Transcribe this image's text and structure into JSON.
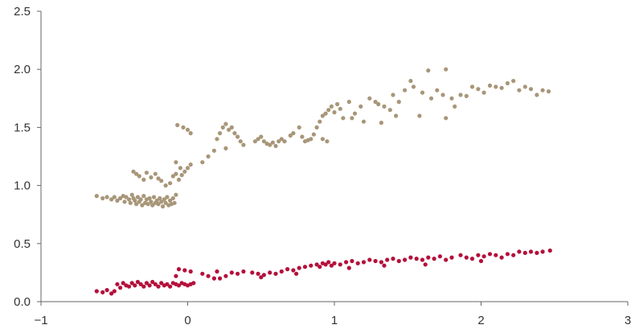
{
  "chart_data": {
    "type": "scatter",
    "title": "",
    "xlabel": "",
    "ylabel": "",
    "xlim": [
      -1,
      3
    ],
    "ylim": [
      0,
      2.5
    ],
    "x_ticks": [
      -1,
      0,
      1,
      2,
      3
    ],
    "x_tick_labels": [
      "−1",
      "0",
      "1",
      "2",
      "3"
    ],
    "y_ticks": [
      0,
      0.5,
      1,
      1.5,
      2,
      2.5
    ],
    "y_tick_labels": [
      "0.0",
      "0.5",
      "1.0",
      "1.5",
      "2.0",
      "2.5"
    ],
    "grid": false,
    "legend": "none",
    "series": [
      {
        "color": "#a89679",
        "points": [
          [
            -0.62,
            0.91
          ],
          [
            -0.58,
            0.89
          ],
          [
            -0.55,
            0.9
          ],
          [
            -0.52,
            0.88
          ],
          [
            -0.5,
            0.9
          ],
          [
            -0.48,
            0.87
          ],
          [
            -0.46,
            0.89
          ],
          [
            -0.44,
            0.91
          ],
          [
            -0.43,
            0.86
          ],
          [
            -0.42,
            0.9
          ],
          [
            -0.4,
            0.88
          ],
          [
            -0.39,
            0.85
          ],
          [
            -0.38,
            0.92
          ],
          [
            -0.37,
            0.89
          ],
          [
            -0.36,
            0.87
          ],
          [
            -0.35,
            0.84
          ],
          [
            -0.34,
            0.9
          ],
          [
            -0.33,
            0.86
          ],
          [
            -0.32,
            0.88
          ],
          [
            -0.31,
            0.83
          ],
          [
            -0.3,
            0.91
          ],
          [
            -0.29,
            0.85
          ],
          [
            -0.28,
            0.88
          ],
          [
            -0.27,
            0.84
          ],
          [
            -0.26,
            0.89
          ],
          [
            -0.25,
            0.86
          ],
          [
            -0.24,
            0.83
          ],
          [
            -0.23,
            0.9
          ],
          [
            -0.22,
            0.85
          ],
          [
            -0.21,
            0.87
          ],
          [
            -0.2,
            0.84
          ],
          [
            -0.19,
            0.89
          ],
          [
            -0.18,
            0.86
          ],
          [
            -0.17,
            0.82
          ],
          [
            -0.16,
            0.88
          ],
          [
            -0.15,
            0.85
          ],
          [
            -0.14,
            0.9
          ],
          [
            -0.13,
            0.83
          ],
          [
            -0.12,
            0.87
          ],
          [
            -0.11,
            0.84
          ],
          [
            -0.1,
            0.89
          ],
          [
            -0.09,
            0.85
          ],
          [
            -0.08,
            0.92
          ],
          [
            -0.35,
            1.1
          ],
          [
            -0.37,
            1.12
          ],
          [
            -0.33,
            1.08
          ],
          [
            -0.3,
            1.05
          ],
          [
            -0.28,
            1.11
          ],
          [
            -0.25,
            1.07
          ],
          [
            -0.22,
            1.1
          ],
          [
            -0.2,
            1.06
          ],
          [
            -0.18,
            1.04
          ],
          [
            -0.15,
            1.0
          ],
          [
            -0.12,
            1.02
          ],
          [
            -0.1,
            1.08
          ],
          [
            -0.08,
            1.1
          ],
          [
            -0.06,
            1.05
          ],
          [
            -0.04,
            1.09
          ],
          [
            -0.02,
            1.12
          ],
          [
            0.0,
            1.15
          ],
          [
            0.02,
            1.18
          ],
          [
            -0.05,
            1.15
          ],
          [
            -0.08,
            1.2
          ],
          [
            -0.07,
            1.52
          ],
          [
            -0.03,
            1.5
          ],
          [
            0.0,
            1.48
          ],
          [
            0.02,
            1.45
          ],
          [
            0.1,
            1.2
          ],
          [
            0.14,
            1.25
          ],
          [
            0.18,
            1.3
          ],
          [
            0.2,
            1.4
          ],
          [
            0.22,
            1.45
          ],
          [
            0.24,
            1.5
          ],
          [
            0.26,
            1.53
          ],
          [
            0.28,
            1.48
          ],
          [
            0.3,
            1.5
          ],
          [
            0.32,
            1.45
          ],
          [
            0.34,
            1.42
          ],
          [
            0.36,
            1.38
          ],
          [
            0.38,
            1.35
          ],
          [
            0.46,
            1.38
          ],
          [
            0.48,
            1.4
          ],
          [
            0.5,
            1.42
          ],
          [
            0.52,
            1.38
          ],
          [
            0.54,
            1.36
          ],
          [
            0.56,
            1.35
          ],
          [
            0.58,
            1.37
          ],
          [
            0.6,
            1.34
          ],
          [
            0.62,
            1.38
          ],
          [
            0.64,
            1.4
          ],
          [
            0.66,
            1.38
          ],
          [
            0.7,
            1.43
          ],
          [
            0.72,
            1.45
          ],
          [
            0.76,
            1.5
          ],
          [
            0.78,
            1.42
          ],
          [
            0.8,
            1.38
          ],
          [
            0.82,
            1.39
          ],
          [
            0.84,
            1.4
          ],
          [
            0.86,
            1.44
          ],
          [
            0.88,
            1.5
          ],
          [
            0.9,
            1.55
          ],
          [
            0.92,
            1.6
          ],
          [
            0.94,
            1.62
          ],
          [
            0.96,
            1.65
          ],
          [
            0.98,
            1.68
          ],
          [
            1.0,
            1.63
          ],
          [
            1.02,
            1.7
          ],
          [
            1.04,
            1.66
          ],
          [
            1.06,
            1.58
          ],
          [
            1.1,
            1.72
          ],
          [
            1.14,
            1.62
          ],
          [
            1.18,
            1.68
          ],
          [
            1.2,
            1.55
          ],
          [
            1.24,
            1.75
          ],
          [
            1.28,
            1.72
          ],
          [
            1.3,
            1.7
          ],
          [
            1.34,
            1.68
          ],
          [
            1.38,
            1.65
          ],
          [
            1.4,
            1.78
          ],
          [
            1.44,
            1.72
          ],
          [
            1.48,
            1.82
          ],
          [
            1.52,
            1.9
          ],
          [
            1.54,
            1.85
          ],
          [
            1.58,
            1.6
          ],
          [
            1.6,
            1.8
          ],
          [
            1.64,
            1.99
          ],
          [
            1.66,
            1.75
          ],
          [
            1.7,
            1.82
          ],
          [
            1.74,
            1.78
          ],
          [
            1.76,
            2.0
          ],
          [
            1.8,
            1.75
          ],
          [
            1.82,
            1.68
          ],
          [
            1.76,
            1.58
          ],
          [
            1.86,
            1.78
          ],
          [
            1.9,
            1.77
          ],
          [
            1.94,
            1.85
          ],
          [
            1.98,
            1.83
          ],
          [
            2.02,
            1.8
          ],
          [
            2.06,
            1.86
          ],
          [
            2.1,
            1.85
          ],
          [
            2.14,
            1.84
          ],
          [
            2.18,
            1.88
          ],
          [
            2.22,
            1.9
          ],
          [
            2.26,
            1.82
          ],
          [
            2.3,
            1.85
          ],
          [
            2.34,
            1.83
          ],
          [
            2.38,
            1.78
          ],
          [
            2.42,
            1.82
          ],
          [
            2.46,
            1.81
          ],
          [
            0.26,
            1.32
          ],
          [
            0.92,
            1.4
          ],
          [
            0.95,
            1.38
          ],
          [
            1.12,
            1.58
          ],
          [
            1.32,
            1.54
          ],
          [
            1.42,
            1.6
          ]
        ]
      },
      {
        "color": "#b4103b",
        "points": [
          [
            -0.62,
            0.09
          ],
          [
            -0.58,
            0.08
          ],
          [
            -0.55,
            0.1
          ],
          [
            -0.52,
            0.07
          ],
          [
            -0.5,
            0.09
          ],
          [
            -0.48,
            0.15
          ],
          [
            -0.46,
            0.12
          ],
          [
            -0.44,
            0.16
          ],
          [
            -0.42,
            0.14
          ],
          [
            -0.4,
            0.13
          ],
          [
            -0.38,
            0.16
          ],
          [
            -0.36,
            0.14
          ],
          [
            -0.34,
            0.17
          ],
          [
            -0.32,
            0.15
          ],
          [
            -0.3,
            0.13
          ],
          [
            -0.28,
            0.16
          ],
          [
            -0.26,
            0.14
          ],
          [
            -0.24,
            0.17
          ],
          [
            -0.22,
            0.15
          ],
          [
            -0.2,
            0.13
          ],
          [
            -0.18,
            0.16
          ],
          [
            -0.16,
            0.14
          ],
          [
            -0.14,
            0.15
          ],
          [
            -0.12,
            0.13
          ],
          [
            -0.1,
            0.16
          ],
          [
            -0.08,
            0.15
          ],
          [
            -0.06,
            0.14
          ],
          [
            -0.04,
            0.16
          ],
          [
            -0.02,
            0.15
          ],
          [
            0.0,
            0.14
          ],
          [
            0.02,
            0.15
          ],
          [
            0.04,
            0.16
          ],
          [
            -0.08,
            0.22
          ],
          [
            -0.06,
            0.28
          ],
          [
            -0.02,
            0.27
          ],
          [
            0.02,
            0.26
          ],
          [
            0.1,
            0.24
          ],
          [
            0.14,
            0.22
          ],
          [
            0.18,
            0.2
          ],
          [
            0.22,
            0.2
          ],
          [
            0.26,
            0.22
          ],
          [
            0.3,
            0.25
          ],
          [
            0.34,
            0.24
          ],
          [
            0.38,
            0.26
          ],
          [
            0.44,
            0.25
          ],
          [
            0.48,
            0.24
          ],
          [
            0.52,
            0.23
          ],
          [
            0.56,
            0.25
          ],
          [
            0.6,
            0.24
          ],
          [
            0.64,
            0.26
          ],
          [
            0.68,
            0.28
          ],
          [
            0.72,
            0.27
          ],
          [
            0.76,
            0.29
          ],
          [
            0.8,
            0.3
          ],
          [
            0.84,
            0.31
          ],
          [
            0.88,
            0.32
          ],
          [
            0.9,
            0.3
          ],
          [
            0.92,
            0.33
          ],
          [
            0.94,
            0.32
          ],
          [
            0.96,
            0.34
          ],
          [
            0.98,
            0.31
          ],
          [
            1.0,
            0.33
          ],
          [
            1.04,
            0.32
          ],
          [
            1.08,
            0.34
          ],
          [
            1.12,
            0.35
          ],
          [
            1.16,
            0.33
          ],
          [
            1.2,
            0.34
          ],
          [
            1.24,
            0.36
          ],
          [
            1.28,
            0.35
          ],
          [
            1.32,
            0.34
          ],
          [
            1.36,
            0.36
          ],
          [
            1.4,
            0.37
          ],
          [
            1.44,
            0.35
          ],
          [
            1.48,
            0.36
          ],
          [
            1.52,
            0.38
          ],
          [
            1.56,
            0.37
          ],
          [
            1.6,
            0.36
          ],
          [
            1.64,
            0.38
          ],
          [
            1.68,
            0.37
          ],
          [
            1.72,
            0.39
          ],
          [
            1.76,
            0.36
          ],
          [
            1.8,
            0.38
          ],
          [
            1.86,
            0.4
          ],
          [
            1.9,
            0.38
          ],
          [
            1.94,
            0.37
          ],
          [
            1.98,
            0.4
          ],
          [
            2.02,
            0.39
          ],
          [
            2.06,
            0.41
          ],
          [
            2.1,
            0.4
          ],
          [
            2.14,
            0.38
          ],
          [
            2.18,
            0.41
          ],
          [
            2.22,
            0.4
          ],
          [
            2.26,
            0.43
          ],
          [
            2.3,
            0.42
          ],
          [
            2.34,
            0.43
          ],
          [
            2.38,
            0.42
          ],
          [
            2.42,
            0.43
          ],
          [
            2.47,
            0.44
          ],
          [
            0.2,
            0.26
          ],
          [
            0.5,
            0.21
          ],
          [
            0.74,
            0.24
          ],
          [
            1.1,
            0.29
          ],
          [
            1.34,
            0.31
          ],
          [
            1.62,
            0.32
          ],
          [
            2.0,
            0.35
          ]
        ]
      }
    ]
  }
}
